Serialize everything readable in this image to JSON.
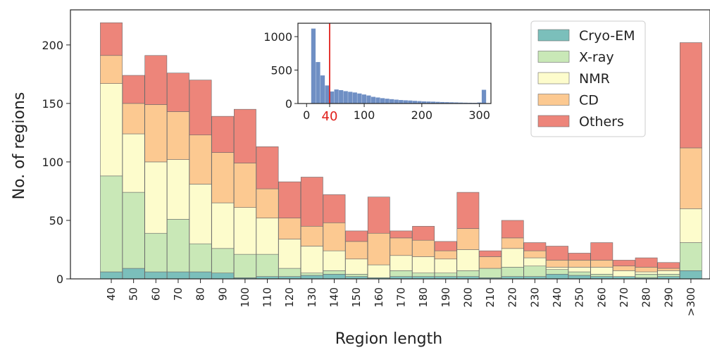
{
  "chart_data": [
    {
      "type": "bar",
      "stacked": true,
      "title": "",
      "xlabel": "Region length",
      "ylabel": "No. of regions",
      "ylim": [
        0,
        230
      ],
      "yticks": [
        0,
        50,
        100,
        150,
        200
      ],
      "grid": false,
      "legend_position": "top-right",
      "categories": [
        "40",
        "50",
        "60",
        "70",
        "80",
        "90",
        "100",
        "110",
        "120",
        "130",
        "140",
        "150",
        "160",
        "170",
        "180",
        "190",
        "200",
        "210",
        "220",
        "230",
        "240",
        "250",
        "260",
        "270",
        "280",
        "290",
        ">300"
      ],
      "series": [
        {
          "name": "Cryo-EM",
          "color": "#7bbfbb",
          "values": [
            6,
            9,
            6,
            6,
            6,
            5,
            1,
            2,
            2,
            3,
            4,
            2,
            1,
            2,
            2,
            2,
            2,
            1,
            2,
            2,
            4,
            3,
            2,
            2,
            1,
            2,
            7
          ]
        },
        {
          "name": "X-ray",
          "color": "#c9e8b7",
          "values": [
            82,
            65,
            33,
            45,
            24,
            21,
            20,
            19,
            7,
            2,
            3,
            2,
            0,
            5,
            3,
            3,
            5,
            8,
            8,
            9,
            4,
            3,
            2,
            0,
            3,
            2,
            24
          ]
        },
        {
          "name": "NMR",
          "color": "#fdfccc",
          "values": [
            79,
            50,
            61,
            51,
            51,
            39,
            40,
            31,
            25,
            23,
            17,
            13,
            11,
            13,
            14,
            12,
            18,
            0,
            16,
            7,
            2,
            4,
            6,
            5,
            2,
            3,
            29
          ]
        },
        {
          "name": "CD",
          "color": "#fcc991",
          "values": [
            24,
            26,
            49,
            41,
            42,
            43,
            38,
            25,
            18,
            17,
            24,
            15,
            27,
            15,
            14,
            7,
            18,
            10,
            9,
            6,
            6,
            6,
            6,
            4,
            4,
            2,
            52
          ]
        },
        {
          "name": "Others",
          "color": "#ed857a",
          "values": [
            28,
            24,
            42,
            33,
            47,
            31,
            46,
            36,
            31,
            42,
            24,
            9,
            31,
            6,
            12,
            8,
            31,
            5,
            15,
            7,
            12,
            6,
            15,
            5,
            8,
            5,
            90
          ]
        }
      ]
    },
    {
      "type": "bar",
      "inset": true,
      "color": "#6f8fc4",
      "xlim": [
        -15,
        320
      ],
      "ylim": [
        0,
        1200
      ],
      "xticks": [
        "0",
        "100",
        "200",
        "300"
      ],
      "yticks": [
        "0",
        "500",
        "1000"
      ],
      "highlight_value": 40,
      "highlight_label": "40",
      "highlight_color": "#e0201b",
      "bin_width": 8,
      "bins": [
        {
          "x": 12,
          "value": 1120
        },
        {
          "x": 20,
          "value": 620
        },
        {
          "x": 28,
          "value": 420
        },
        {
          "x": 36,
          "value": 270
        },
        {
          "x": 44,
          "value": 180
        },
        {
          "x": 52,
          "value": 210
        },
        {
          "x": 60,
          "value": 200
        },
        {
          "x": 68,
          "value": 185
        },
        {
          "x": 76,
          "value": 175
        },
        {
          "x": 84,
          "value": 165
        },
        {
          "x": 92,
          "value": 150
        },
        {
          "x": 100,
          "value": 135
        },
        {
          "x": 108,
          "value": 120
        },
        {
          "x": 116,
          "value": 100
        },
        {
          "x": 124,
          "value": 90
        },
        {
          "x": 132,
          "value": 80
        },
        {
          "x": 140,
          "value": 72
        },
        {
          "x": 148,
          "value": 65
        },
        {
          "x": 156,
          "value": 58
        },
        {
          "x": 164,
          "value": 52
        },
        {
          "x": 172,
          "value": 48
        },
        {
          "x": 180,
          "value": 45
        },
        {
          "x": 188,
          "value": 40
        },
        {
          "x": 196,
          "value": 36
        },
        {
          "x": 204,
          "value": 32
        },
        {
          "x": 212,
          "value": 30
        },
        {
          "x": 220,
          "value": 28
        },
        {
          "x": 228,
          "value": 25
        },
        {
          "x": 236,
          "value": 22
        },
        {
          "x": 244,
          "value": 20
        },
        {
          "x": 252,
          "value": 18
        },
        {
          "x": 260,
          "value": 16
        },
        {
          "x": 268,
          "value": 14
        },
        {
          "x": 276,
          "value": 12
        },
        {
          "x": 284,
          "value": 11
        },
        {
          "x": 292,
          "value": 10
        },
        {
          "x": 300,
          "value": 15
        },
        {
          "x": 308,
          "value": 205
        }
      ]
    }
  ]
}
